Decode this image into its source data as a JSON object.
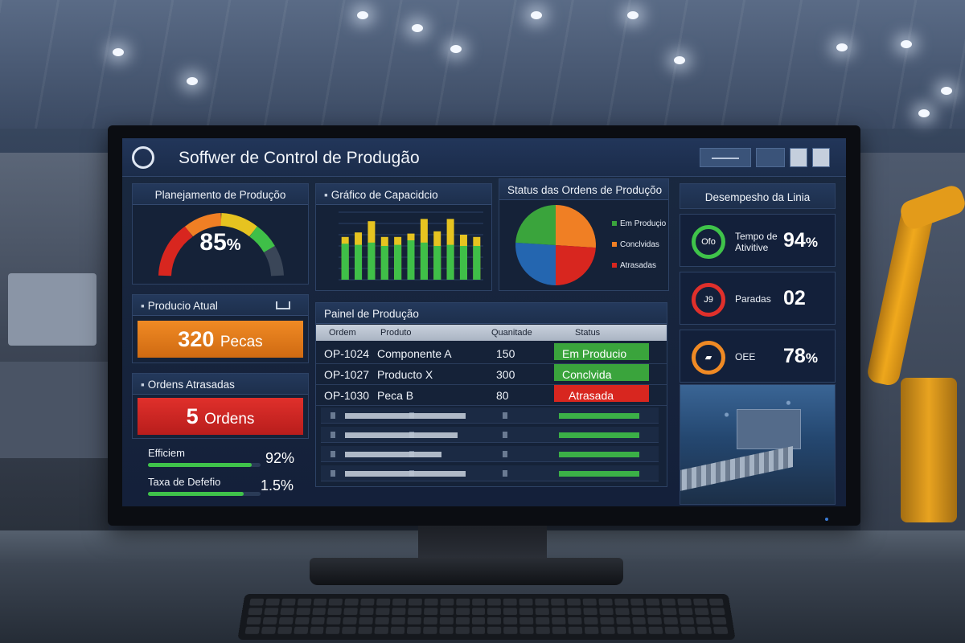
{
  "app": {
    "title": "Soffwer de Control de Produgão"
  },
  "panels": {
    "planning": {
      "title": "Planejamento de Produçõo",
      "gauge_value": "85",
      "gauge_unit": "%"
    },
    "capacity": {
      "title": "Gráfico de Capacidcio"
    },
    "order_status": {
      "title": "Status das Ordens de Produçõo",
      "legend": [
        "Em Produçio",
        "Conclvidas",
        "Atrasadas"
      ]
    },
    "current_production": {
      "title": "Producio Atual",
      "value": "320",
      "unit": "Pecas"
    },
    "late_orders": {
      "title": "Ordens Atrasadas",
      "value": "5",
      "unit": "Ordens"
    },
    "metrics": [
      {
        "label": "Efficiem",
        "value": "92%",
        "fill": 0.92
      },
      {
        "label": "Taxa de Defefio",
        "value": "1.5%",
        "fill": 0.85
      }
    ],
    "production_board": {
      "title": "Painel de Produção",
      "columns": [
        "Ordem",
        "Produto",
        "Quanitade",
        "Status"
      ],
      "rows": [
        {
          "order": "OP-1024",
          "product": "Componente A",
          "qty": "150",
          "status": "Em Producio",
          "status_color": "#3aa43c"
        },
        {
          "order": "OP-1027",
          "product": "Producto X",
          "qty": "300",
          "status": "Conclvida",
          "status_color": "#3aa43c"
        },
        {
          "order": "OP-1030",
          "product": "Peca B",
          "qty": "80",
          "status": "Atrasada",
          "status_color": "#d8261f"
        }
      ]
    },
    "line_performance": {
      "title": "Desempesho da Linia",
      "kpis": [
        {
          "icon": "uptime-icon",
          "icon_text": "Ofo",
          "label_line1": "Tempo de",
          "label_line2": "Ativitive",
          "value": "94",
          "unit": "%"
        },
        {
          "icon": "stops-icon",
          "icon_text": "J9",
          "label_line1": "Paradas",
          "label_line2": "",
          "value": "02",
          "unit": ""
        },
        {
          "icon": "oee-icon",
          "icon_text": "▰",
          "label_line1": "OEE",
          "label_line2": "",
          "value": "78",
          "unit": "%"
        }
      ]
    }
  },
  "chart_data": [
    {
      "type": "bar",
      "title": "Gráfico de Capacidcio",
      "ylim": [
        0,
        600
      ],
      "series": [
        {
          "color": "#3fbf48",
          "values": [
            320,
            310,
            330,
            300,
            310,
            350,
            330,
            300,
            310,
            300,
            300
          ]
        },
        {
          "color": "#e6c320",
          "values": [
            380,
            420,
            520,
            380,
            380,
            410,
            540,
            430,
            540,
            400,
            380
          ]
        }
      ],
      "grid": true
    },
    {
      "type": "pie",
      "title": "Status das Ordens de Produçõo",
      "categories": [
        "Em Produçio",
        "Conclvidas",
        "Atrasadas"
      ],
      "values": [
        37,
        28,
        35
      ],
      "colors": [
        "#f07f24",
        "#d8261f",
        "#2466b0",
        "#3aa43c"
      ]
    }
  ]
}
